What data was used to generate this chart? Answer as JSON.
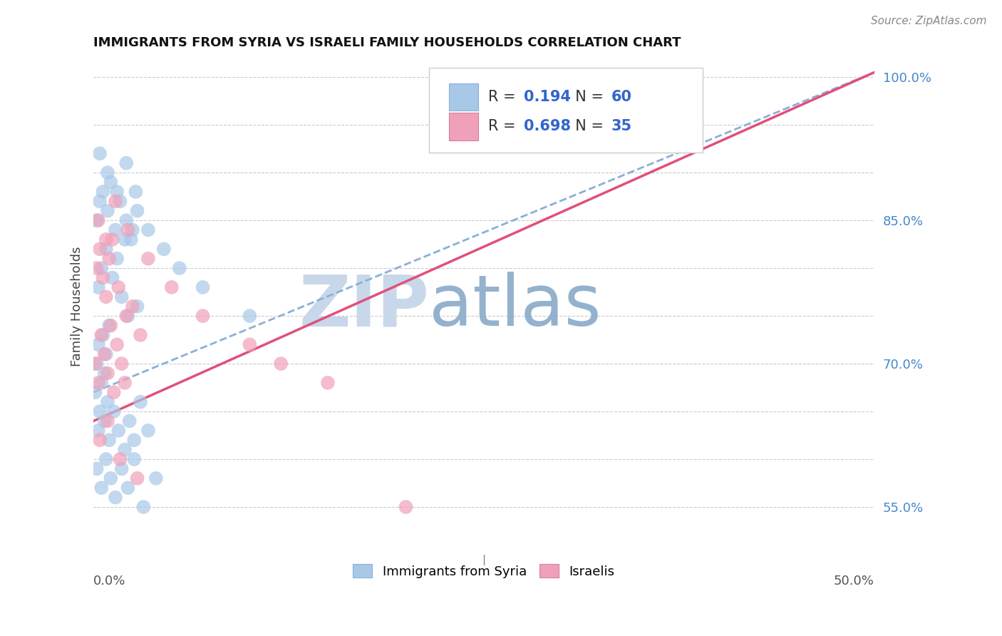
{
  "title": "IMMIGRANTS FROM SYRIA VS ISRAELI FAMILY HOUSEHOLDS CORRELATION CHART",
  "source": "Source: ZipAtlas.com",
  "ylabel_label": "Family Households",
  "xmin": 0.0,
  "xmax": 50.0,
  "ymin": 50.0,
  "ymax": 102.0,
  "blue_r": "0.194",
  "blue_n": "60",
  "pink_r": "0.698",
  "pink_n": "35",
  "blue_color": "#a8c8e8",
  "pink_color": "#f0a0b8",
  "blue_line_color": "#8ab0d8",
  "pink_line_color": "#e0507a",
  "watermark_zip_color": "#c8d8e8",
  "watermark_atlas_color": "#a0bcd0",
  "blue_scatter_x": [
    0.1,
    0.2,
    0.3,
    0.4,
    0.5,
    0.6,
    0.7,
    0.8,
    0.9,
    1.0,
    0.3,
    0.5,
    0.8,
    1.2,
    1.5,
    1.8,
    2.0,
    2.2,
    2.5,
    2.8,
    0.2,
    0.4,
    0.6,
    0.9,
    1.1,
    1.4,
    1.7,
    2.1,
    2.4,
    2.7,
    0.3,
    0.7,
    1.0,
    1.3,
    1.6,
    2.0,
    2.3,
    2.6,
    3.0,
    3.5,
    0.2,
    0.5,
    0.8,
    1.1,
    1.4,
    1.8,
    2.2,
    2.6,
    3.2,
    4.0,
    0.4,
    0.9,
    1.5,
    2.1,
    2.8,
    3.5,
    4.5,
    5.5,
    7.0,
    10.0
  ],
  "blue_scatter_y": [
    67.0,
    70.0,
    72.0,
    65.0,
    68.0,
    73.0,
    69.0,
    71.0,
    66.0,
    74.0,
    78.0,
    80.0,
    82.0,
    79.0,
    81.0,
    77.0,
    83.0,
    75.0,
    84.0,
    76.0,
    85.0,
    87.0,
    88.0,
    86.0,
    89.0,
    84.0,
    87.0,
    85.0,
    83.0,
    88.0,
    63.0,
    64.0,
    62.0,
    65.0,
    63.0,
    61.0,
    64.0,
    62.0,
    66.0,
    63.0,
    59.0,
    57.0,
    60.0,
    58.0,
    56.0,
    59.0,
    57.0,
    60.0,
    55.0,
    58.0,
    92.0,
    90.0,
    88.0,
    91.0,
    86.0,
    84.0,
    82.0,
    80.0,
    78.0,
    75.0
  ],
  "pink_scatter_x": [
    0.1,
    0.3,
    0.5,
    0.7,
    0.9,
    1.1,
    1.3,
    1.5,
    1.8,
    2.0,
    0.2,
    0.4,
    0.6,
    0.8,
    1.0,
    1.2,
    1.6,
    2.1,
    2.5,
    3.0,
    0.3,
    0.8,
    1.4,
    2.2,
    3.5,
    5.0,
    7.0,
    10.0,
    12.0,
    15.0,
    0.4,
    0.9,
    1.7,
    2.8,
    20.0
  ],
  "pink_scatter_y": [
    70.0,
    68.0,
    73.0,
    71.0,
    69.0,
    74.0,
    67.0,
    72.0,
    70.0,
    68.0,
    80.0,
    82.0,
    79.0,
    77.0,
    81.0,
    83.0,
    78.0,
    75.0,
    76.0,
    73.0,
    85.0,
    83.0,
    87.0,
    84.0,
    81.0,
    78.0,
    75.0,
    72.0,
    70.0,
    68.0,
    62.0,
    64.0,
    60.0,
    58.0,
    55.0
  ],
  "yticks": [
    50.0,
    55.0,
    60.0,
    65.0,
    70.0,
    75.0,
    80.0,
    85.0,
    90.0,
    95.0,
    100.0
  ],
  "right_ytick_show": [
    55.0,
    70.0,
    85.0,
    100.0
  ],
  "right_ytick_labels": [
    "55.0%",
    "70.0%",
    "85.0%",
    "100.0%"
  ],
  "blue_line_x0": 0.0,
  "blue_line_y0": 67.0,
  "blue_line_x1": 50.0,
  "blue_line_y1": 100.5,
  "pink_line_x0": 0.0,
  "pink_line_y0": 64.0,
  "pink_line_x1": 50.0,
  "pink_line_y1": 100.5
}
